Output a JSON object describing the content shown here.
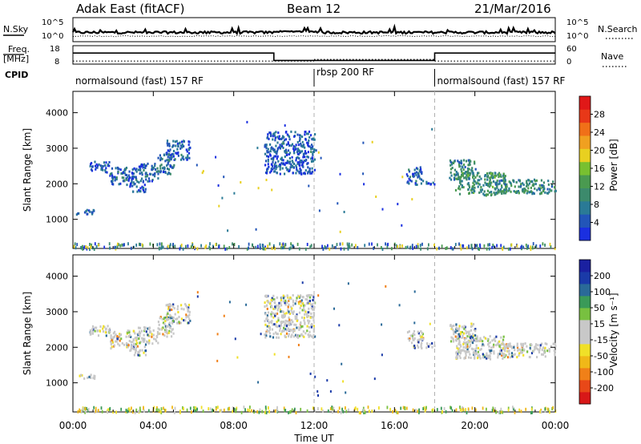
{
  "header": {
    "station": "Adak East (fitACF)",
    "beam": "Beam 12",
    "date": "21/Mar/2016"
  },
  "strip_noise": {
    "left_label": "N.Sky",
    "right_label": "N.Search",
    "left_ticks": [
      "10^5",
      "10^0"
    ],
    "right_ticks": [
      "10^5",
      "10^0"
    ]
  },
  "strip_freq": {
    "left_label_1": "Freq.",
    "left_label_2": "[MHz]",
    "right_label": "Nave",
    "left_ticks": [
      "18",
      "8"
    ],
    "right_ticks": [
      "60",
      "0"
    ],
    "freq_series": [
      {
        "x0": 0.0,
        "x1": 10.0,
        "y": 14
      },
      {
        "x0": 10.0,
        "x1": 18.0,
        "y": 10
      },
      {
        "x0": 18.0,
        "x1": 24.0,
        "y": 14
      }
    ],
    "nave_series": [
      {
        "x0": 0.0,
        "x1": 12.0,
        "y": 10
      },
      {
        "x0": 12.0,
        "x1": 18.0,
        "y": 15
      },
      {
        "x0": 18.0,
        "x1": 24.0,
        "y": 10
      }
    ]
  },
  "cpid": {
    "label": "CPID",
    "segments": [
      {
        "start": 0.0,
        "end": 12.0,
        "text": "normalsound (fast) 157 RF"
      },
      {
        "start": 12.0,
        "end": 18.0,
        "text": "rbsp 200 RF"
      },
      {
        "start": 18.0,
        "end": 24.0,
        "text": "normalsound (fast) 157 RF"
      }
    ]
  },
  "x_axis": {
    "label": "Time UT",
    "ticks": [
      "00:00",
      "04:00",
      "08:00",
      "12:00",
      "16:00",
      "20:00",
      "00:00"
    ],
    "range_hours": [
      0,
      24
    ]
  },
  "chart_data": [
    {
      "type": "heatmap",
      "title": "Power",
      "ylabel": "Slant Range [km]",
      "ylim": [
        180,
        4600
      ],
      "yticks": [
        1000,
        2000,
        3000,
        4000
      ],
      "xlim": [
        0,
        24
      ],
      "colorbar": {
        "label": "Power [dB]",
        "range": [
          0,
          32
        ],
        "ticks": [
          4,
          8,
          12,
          16,
          20,
          24,
          28
        ],
        "colors": [
          "#1a2fe0",
          "#2255b8",
          "#2a7a96",
          "#3c8a6c",
          "#4a9a50",
          "#78c030",
          "#e8d020",
          "#f0a020",
          "#f07018",
          "#e83818",
          "#e01818"
        ]
      },
      "echo_regions": [
        {
          "t0": 0.8,
          "t1": 1.8,
          "r0": 2350,
          "r1": 2650,
          "level": 6
        },
        {
          "t0": 1.8,
          "t1": 3.2,
          "r0": 2000,
          "r1": 2500,
          "level": 7
        },
        {
          "t0": 2.8,
          "t1": 3.6,
          "r0": 1800,
          "r1": 2100,
          "level": 6
        },
        {
          "t0": 3.2,
          "t1": 4.2,
          "r0": 2100,
          "r1": 2600,
          "level": 7
        },
        {
          "t0": 4.2,
          "t1": 5.0,
          "r0": 2300,
          "r1": 2900,
          "level": 8
        },
        {
          "t0": 4.6,
          "t1": 5.8,
          "r0": 2700,
          "r1": 3250,
          "level": 7
        },
        {
          "t0": 0.1,
          "t1": 1.1,
          "r0": 1150,
          "r1": 1300,
          "level": 6
        },
        {
          "t0": 16.6,
          "t1": 17.4,
          "r0": 2000,
          "r1": 2500,
          "level": 7
        },
        {
          "t0": 17.5,
          "t1": 18.0,
          "r0": 2000,
          "r1": 2150,
          "level": 7
        },
        {
          "t0": 18.7,
          "t1": 20.0,
          "r0": 2150,
          "r1": 2700,
          "level": 10
        },
        {
          "t0": 19.0,
          "t1": 21.5,
          "r0": 1700,
          "r1": 2350,
          "level": 12
        },
        {
          "t0": 21.0,
          "t1": 24.0,
          "r0": 1750,
          "r1": 2150,
          "level": 11
        },
        {
          "t0": 9.5,
          "t1": 12.0,
          "r0": 2300,
          "r1": 3500,
          "level": 6
        }
      ]
    },
    {
      "type": "heatmap",
      "title": "Velocity",
      "ylabel": "Slant Range [km]",
      "ylim": [
        180,
        4600
      ],
      "yticks": [
        1000,
        2000,
        3000,
        4000
      ],
      "xlim": [
        0,
        24
      ],
      "colorbar": {
        "label": "Velocity [m s⁻¹]",
        "range": [
          -250,
          250
        ],
        "ticks": [
          200,
          100,
          50,
          15,
          -15,
          -50,
          -100,
          -200
        ],
        "colors": [
          "#d81818",
          "#e84818",
          "#f08018",
          "#f0b818",
          "#f0e028",
          "#c8c8c8",
          "#c8c8c8",
          "#78c040",
          "#3a9a58",
          "#2a6a98",
          "#1a3aa8",
          "#1a20a0"
        ]
      },
      "echo_regions": [
        {
          "t0": 0.8,
          "t1": 1.8,
          "r0": 2350,
          "r1": 2650,
          "level": 5
        },
        {
          "t0": 1.8,
          "t1": 3.2,
          "r0": 2000,
          "r1": 2500,
          "level": 5
        },
        {
          "t0": 2.8,
          "t1": 3.6,
          "r0": 1800,
          "r1": 2100,
          "level": 5
        },
        {
          "t0": 3.2,
          "t1": 4.2,
          "r0": 2100,
          "r1": 2600,
          "level": 5
        },
        {
          "t0": 4.2,
          "t1": 5.0,
          "r0": 2300,
          "r1": 2900,
          "level": 6
        },
        {
          "t0": 4.6,
          "t1": 5.8,
          "r0": 2700,
          "r1": 3250,
          "level": 5
        },
        {
          "t0": 0.1,
          "t1": 1.1,
          "r0": 1150,
          "r1": 1300,
          "level": 5
        },
        {
          "t0": 16.6,
          "t1": 17.4,
          "r0": 2000,
          "r1": 2500,
          "level": 5
        },
        {
          "t0": 17.5,
          "t1": 18.0,
          "r0": 2000,
          "r1": 2150,
          "level": 5
        },
        {
          "t0": 18.7,
          "t1": 20.0,
          "r0": 2150,
          "r1": 2700,
          "level": 5
        },
        {
          "t0": 19.0,
          "t1": 21.5,
          "r0": 1700,
          "r1": 2350,
          "level": 6
        },
        {
          "t0": 21.0,
          "t1": 24.0,
          "r0": 1750,
          "r1": 2150,
          "level": 5
        },
        {
          "t0": 9.5,
          "t1": 12.0,
          "r0": 2300,
          "r1": 3500,
          "level": 4
        }
      ]
    }
  ],
  "colors": {
    "axis": "#000000",
    "dashed_divider": "#b0b0b0"
  }
}
